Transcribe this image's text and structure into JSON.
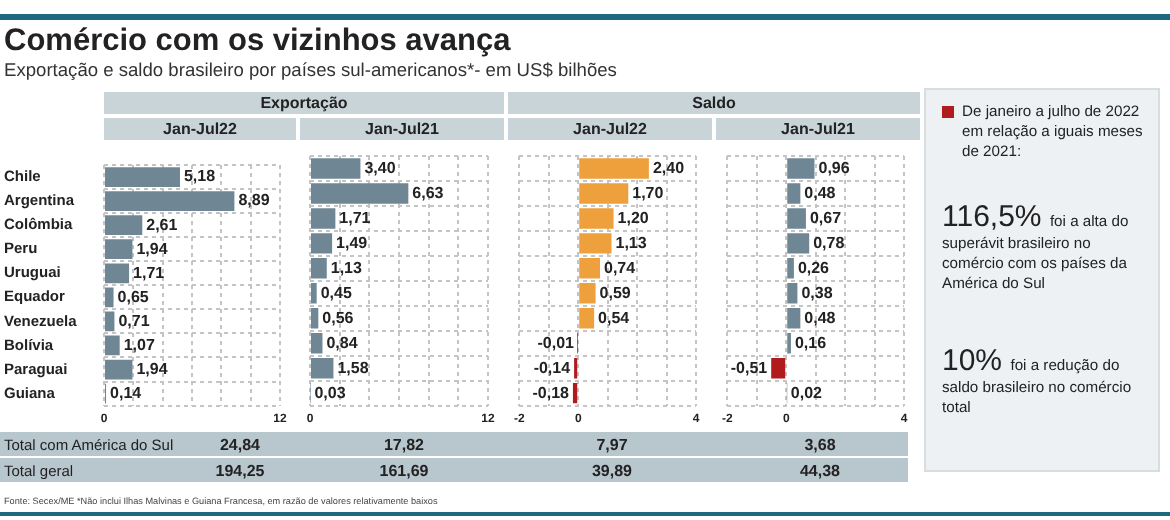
{
  "chart_data": [
    {
      "type": "other",
      "title": "Comércio com os vizinhos avança",
      "subtitle": "Exportação e saldo brasileiro por países sul-americanos*- em US$ bilhões",
      "annotations": [
        "Total com América do Sul",
        "Total geral",
        "Fonte: Secex/ME  *Não inclui Ilhas Malvinas e Guiana Francesa, em razão de valores relativamente baixos"
      ]
    },
    {
      "type": "bar",
      "orientation": "horizontal",
      "subtitle": "Exportação",
      "title": "Jan-Jul22",
      "categories": [
        "Chile",
        "Argentina",
        "Colômbia",
        "Peru",
        "Uruguai",
        "Equador",
        "Venezuela",
        "Bolívia",
        "Paraguai",
        "Guiana"
      ],
      "values": [
        5.18,
        8.89,
        2.61,
        1.94,
        1.71,
        0.65,
        0.71,
        1.07,
        1.94,
        0.14
      ],
      "colors": [
        "#6f8795",
        "#6f8795",
        "#6f8795",
        "#6f8795",
        "#6f8795",
        "#6f8795",
        "#6f8795",
        "#6f8795",
        "#6f8795",
        "#6f8795"
      ],
      "value_labels": [
        "5,18",
        "8,89",
        "2,61",
        "1,94",
        "1,71",
        "0,65",
        "0,71",
        "1,07",
        "1,94",
        "0,14"
      ],
      "xlim": [
        0,
        12
      ],
      "xticks": [
        0,
        {
          "value": 2,
          "label": null
        },
        {
          "value": 4,
          "label": null
        },
        {
          "value": 6,
          "label": null
        },
        {
          "value": 8,
          "label": null
        },
        {
          "value": 10,
          "label": null
        },
        12
      ],
      "grid": true,
      "annotations": [
        "24,84",
        "194,25"
      ]
    },
    {
      "type": "bar",
      "orientation": "horizontal",
      "title": "Jan-Jul21",
      "values": [
        3.4,
        6.63,
        1.71,
        1.49,
        1.13,
        0.45,
        0.56,
        0.84,
        1.58,
        0.03
      ],
      "colors": [
        "#6f8795",
        "#6f8795",
        "#6f8795",
        "#6f8795",
        "#6f8795",
        "#6f8795",
        "#6f8795",
        "#6f8795",
        "#6f8795",
        "#6f8795"
      ],
      "value_labels": [
        "3,40",
        "6,63",
        "1,71",
        "1,49",
        "1,13",
        "0,45",
        "0,56",
        "0,84",
        "1,58",
        "0,03"
      ],
      "xlim": [
        0,
        12
      ],
      "xticks": [
        0,
        {
          "value": 2,
          "label": null
        },
        {
          "value": 4,
          "label": null
        },
        {
          "value": 6,
          "label": null
        },
        {
          "value": 8,
          "label": null
        },
        {
          "value": 10,
          "label": null
        },
        12
      ],
      "grid": true,
      "tick_labels": "x",
      "annotations": [
        "17,82",
        "161,69"
      ]
    },
    {
      "type": "bar",
      "orientation": "horizontal",
      "subtitle": "Saldo",
      "title": "Jan-Jul22",
      "values": [
        2.4,
        1.7,
        1.2,
        1.13,
        0.74,
        0.59,
        0.54,
        -0.01,
        -0.14,
        -0.18
      ],
      "colors": [
        "#eda03c",
        "#eda03c",
        "#eda03c",
        "#eda03c",
        "#eda03c",
        "#eda03c",
        "#eda03c",
        "#b01c1c",
        "#b01c1c",
        "#b01c1c"
      ],
      "value_labels": [
        "2,40",
        "1,70",
        "1,20",
        "1,13",
        "0,74",
        "0,59",
        "0,54",
        "-0,01",
        "-0,14",
        "-0,18"
      ],
      "xlim": [
        -2,
        4
      ],
      "xticks": [
        -2,
        {
          "value": -1,
          "label": null
        },
        0,
        {
          "value": 1,
          "label": null
        },
        {
          "value": 2,
          "label": null
        },
        {
          "value": 3,
          "label": null
        },
        4
      ],
      "grid": true,
      "tick_labels": "x",
      "annotations": [
        "7,97",
        "39,89"
      ]
    },
    {
      "type": "bar",
      "orientation": "horizontal",
      "title": "Jan-Jul21",
      "values": [
        0.96,
        0.48,
        0.67,
        0.78,
        0.26,
        0.38,
        0.48,
        0.16,
        -0.51,
        0.02
      ],
      "colors": [
        "#6f8795",
        "#6f8795",
        "#6f8795",
        "#6f8795",
        "#6f8795",
        "#6f8795",
        "#6f8795",
        "#6f8795",
        "#b01c1c",
        "#6f8795"
      ],
      "value_labels": [
        "0,96",
        "0,48",
        "0,67",
        "0,78",
        "0,26",
        "0,38",
        "0,48",
        "0,16",
        "-0,51",
        "0,02"
      ],
      "xlim": [
        -2,
        4
      ],
      "xticks": [
        -2,
        {
          "value": -1,
          "label": null
        },
        0,
        {
          "value": 1,
          "label": null
        },
        {
          "value": 2,
          "label": null
        },
        {
          "value": 3,
          "label": null
        },
        4
      ],
      "grid": true,
      "tick_labels": "x",
      "annotations": [
        "3,68",
        "44,38"
      ]
    },
    {
      "type": "other",
      "annotations": [
        "De janeiro a julho de 2022 em relação a iguais meses de 2021:",
        "116,5% foi a alta do superávit brasileiro no comércio com os países da América do Sul",
        "10% foi a redução do saldo brasileiro no comércio total"
      ]
    }
  ]
}
